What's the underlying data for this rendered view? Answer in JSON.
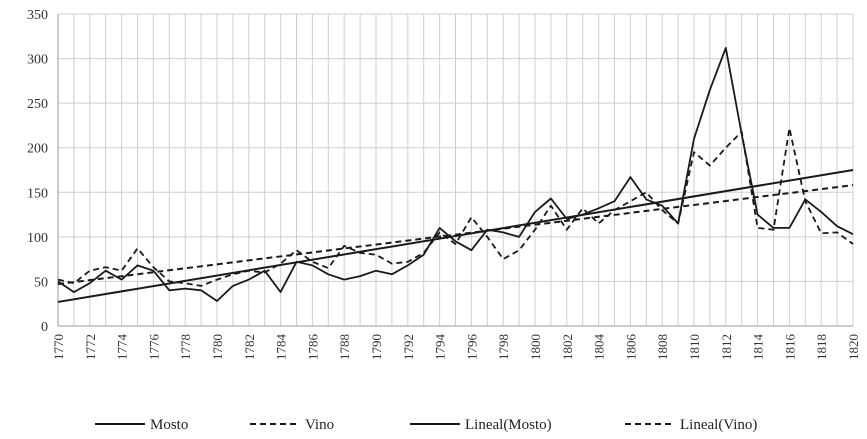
{
  "chart_data": {
    "type": "line",
    "x": [
      1770,
      1771,
      1772,
      1773,
      1774,
      1775,
      1776,
      1777,
      1778,
      1779,
      1780,
      1781,
      1782,
      1783,
      1784,
      1785,
      1786,
      1787,
      1788,
      1789,
      1790,
      1791,
      1792,
      1793,
      1794,
      1795,
      1796,
      1797,
      1798,
      1799,
      1800,
      1801,
      1802,
      1803,
      1804,
      1805,
      1806,
      1807,
      1808,
      1809,
      1810,
      1811,
      1812,
      1813,
      1814,
      1815,
      1816,
      1817,
      1818,
      1819,
      1820
    ],
    "x_tick_labels": [
      "1770",
      "1772",
      "1774",
      "1776",
      "1778",
      "1780",
      "1782",
      "1784",
      "1786",
      "1788",
      "1790",
      "1792",
      "1794",
      "1796",
      "1798",
      "1800",
      "1802",
      "1804",
      "1806",
      "1808",
      "1810",
      "1812",
      "1814",
      "1816",
      "1818",
      "1820"
    ],
    "ylim": [
      0,
      350
    ],
    "y_ticks": [
      0,
      50,
      100,
      150,
      200,
      250,
      300,
      350
    ],
    "grid": true,
    "legend_position": "bottom",
    "series": [
      {
        "name": "Mosto",
        "style": "solid",
        "values": [
          50,
          38,
          48,
          62,
          52,
          68,
          62,
          40,
          42,
          40,
          28,
          45,
          52,
          62,
          38,
          72,
          68,
          58,
          52,
          56,
          62,
          58,
          68,
          80,
          110,
          95,
          85,
          108,
          105,
          100,
          128,
          143,
          120,
          125,
          132,
          140,
          167,
          142,
          135,
          115,
          210,
          265,
          312,
          215,
          125,
          110,
          110,
          142,
          128,
          112,
          103
        ]
      },
      {
        "name": "Vino",
        "style": "dashed",
        "values": [
          52,
          48,
          62,
          66,
          62,
          87,
          66,
          50,
          48,
          45,
          52,
          58,
          62,
          60,
          70,
          85,
          72,
          65,
          90,
          82,
          80,
          70,
          72,
          82,
          105,
          92,
          122,
          100,
          75,
          85,
          108,
          135,
          108,
          132,
          115,
          130,
          140,
          150,
          130,
          115,
          195,
          180,
          200,
          218,
          110,
          108,
          222,
          140,
          104,
          105,
          92
        ]
      },
      {
        "name": "Lineal(Mosto)",
        "style": "solid",
        "trend": "linear",
        "values_at_ends": [
          27,
          175
        ]
      },
      {
        "name": "Lineal(Vino)",
        "style": "dashed",
        "trend": "linear",
        "values_at_ends": [
          47,
          158
        ]
      }
    ]
  }
}
